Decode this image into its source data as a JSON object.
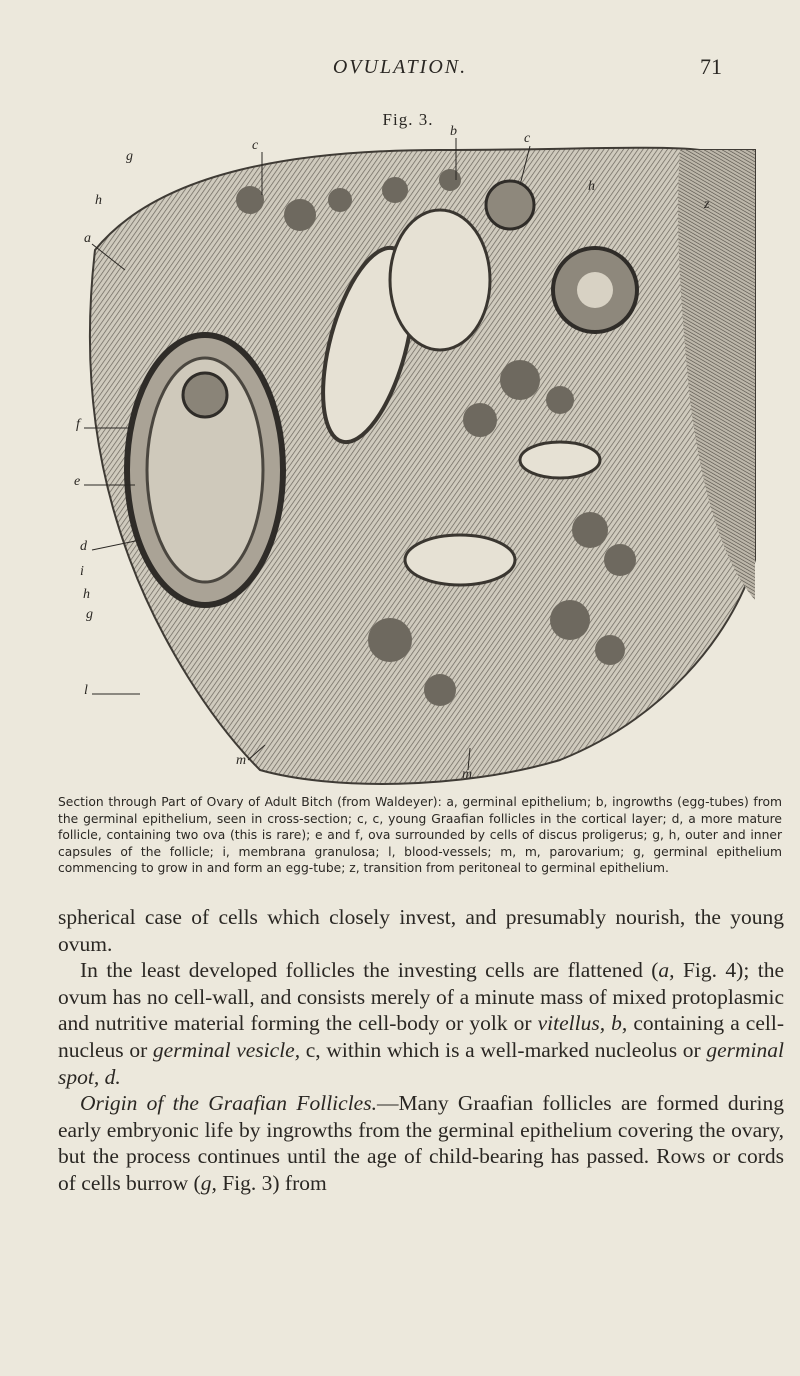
{
  "header": {
    "running_title": "OVULATION.",
    "page_number": "71"
  },
  "figure": {
    "label": "Fig. 3.",
    "letters": [
      "c",
      "b",
      "c",
      "g",
      "h",
      "a",
      "h",
      "z",
      "f",
      "e",
      "d",
      "i",
      "h",
      "g",
      "l",
      "m",
      "m"
    ],
    "caption": "Section through Part of Ovary of Adult Bitch (from Waldeyer): a, germinal epithelium; b, ingrowths (egg-tubes) from the germinal epithelium, seen in cross-section; c, c, young Graafian follicles in the cortical layer; d, a more mature follicle, containing two ova (this is rare); e and f, ova surrounded by cells of discus proligerus; g, h, outer and inner capsules of the follicle; i, membrana granulosa; l, blood-vessels; m, m, parovarium; g, germinal epithelium commencing to grow in and form an egg-tube; z, transition from peritoneal to germinal epithelium."
  },
  "body": {
    "paragraphs": [
      [
        {
          "text": "spherical case of cells which closely invest, and presumably nourish, the young ovum.",
          "italic": false
        }
      ],
      [
        {
          "text": "In the least developed follicles the investing cells are flattened (",
          "italic": false
        },
        {
          "text": "a,",
          "italic": true
        },
        {
          "text": " Fig. 4); the ovum has no cell-wall, and consists merely of a minute mass of mixed protoplasmic and nutritive material forming the cell-body or yolk or ",
          "italic": false
        },
        {
          "text": "vitellus, b,",
          "italic": true
        },
        {
          "text": " containing a cell-nucleus or ",
          "italic": false
        },
        {
          "text": "germinal vesicle,",
          "italic": true
        },
        {
          "text": " c, within which is a well-marked nucleolus or ",
          "italic": false
        },
        {
          "text": "germinal spot, d.",
          "italic": true
        }
      ],
      [
        {
          "text": "Origin of the Graafian Follicles.",
          "italic": true
        },
        {
          "text": "—Many Graafian follicles are formed during early embryonic life by ingrowths from the germinal epithelium covering the ovary, but the process continues until the age of child-bearing has passed. Rows or cords of cells burrow (",
          "italic": false
        },
        {
          "text": "g,",
          "italic": true
        },
        {
          "text": " Fig. 3) from",
          "italic": false
        }
      ]
    ]
  }
}
